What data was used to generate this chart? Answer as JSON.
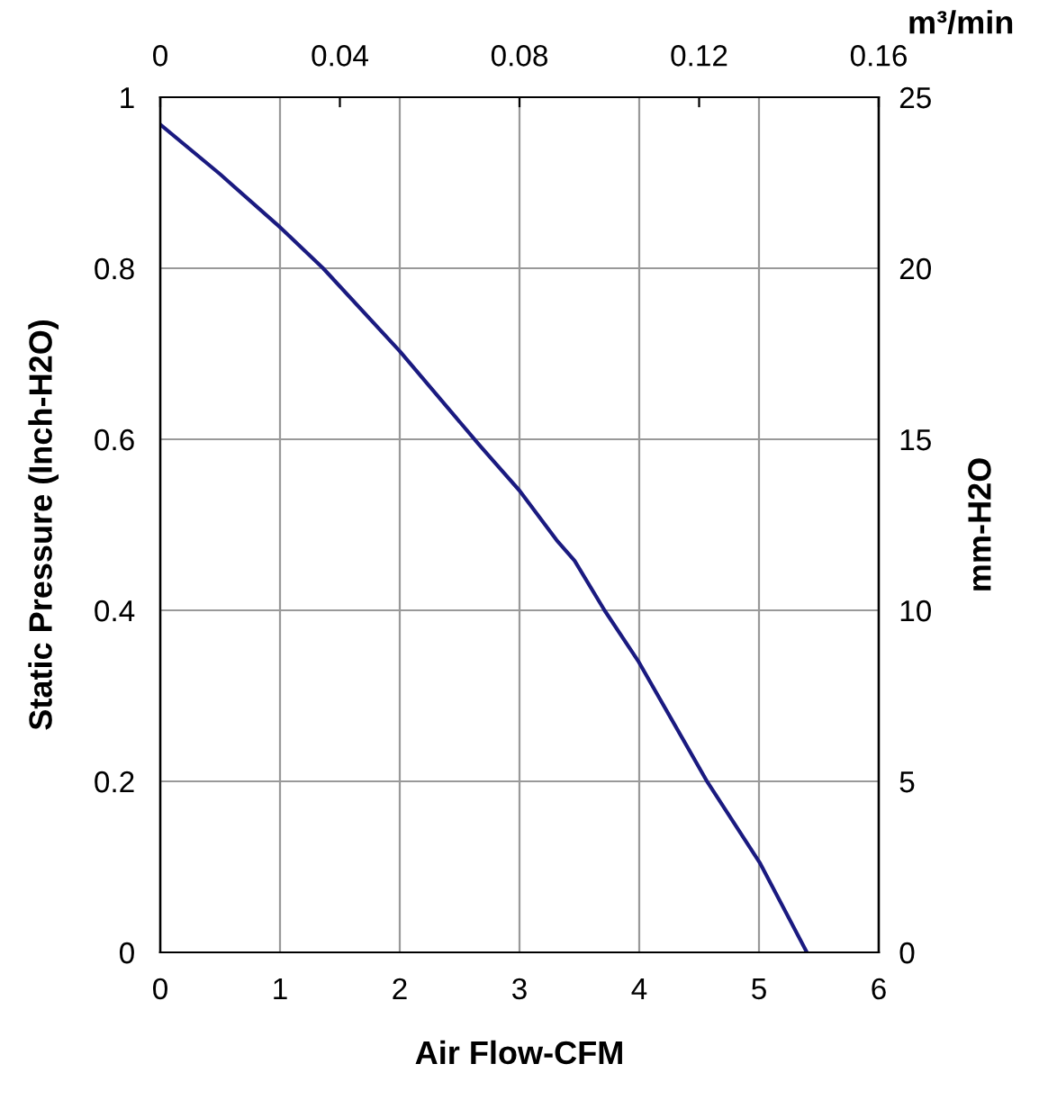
{
  "chart_data": {
    "type": "line",
    "xlabel": "Air Flow-CFM",
    "ylabel": "Static Pressure (Inch-H2O)",
    "y2label": "mm-H2O",
    "x2label": "m³/min",
    "series": [
      {
        "color": "#1a1a80",
        "x": [
          0,
          0.5,
          1.0,
          1.36,
          2.0,
          2.66,
          3.0,
          3.31,
          3.46,
          3.71,
          3.99,
          4.57,
          5.01,
          5.4
        ],
        "values": [
          0.968,
          0.91,
          0.848,
          0.8,
          0.703,
          0.594,
          0.54,
          0.482,
          0.458,
          0.4,
          0.341,
          0.199,
          0.104,
          0
        ]
      }
    ],
    "xlim": [
      0,
      6
    ],
    "xticks": [
      0,
      1,
      2,
      3,
      4,
      5,
      6
    ],
    "ylim": [
      0,
      1
    ],
    "yticks": [
      0,
      0.2,
      0.4,
      0.6,
      0.8,
      1
    ],
    "y2lim": [
      0,
      25
    ],
    "y2ticks": [
      0,
      5,
      10,
      15,
      20,
      25
    ],
    "x2lim": [
      0,
      0.16
    ],
    "x2ticks": [
      0,
      0.04,
      0.08,
      0.12,
      0.16
    ],
    "grid": true,
    "marker": "none",
    "line_style": "solid"
  }
}
